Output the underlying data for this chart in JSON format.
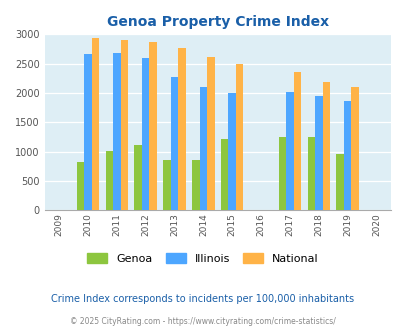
{
  "title": "Genoa Property Crime Index",
  "all_years": [
    2009,
    2010,
    2011,
    2012,
    2013,
    2014,
    2015,
    2016,
    2017,
    2018,
    2019,
    2020
  ],
  "bar_years": [
    2010,
    2011,
    2012,
    2013,
    2014,
    2015,
    2017,
    2018,
    2019
  ],
  "genoa": [
    820,
    1010,
    1120,
    860,
    850,
    1210,
    1250,
    1250,
    960
  ],
  "illinois": [
    2670,
    2680,
    2590,
    2280,
    2100,
    2000,
    2020,
    1950,
    1860
  ],
  "national": [
    2930,
    2910,
    2870,
    2760,
    2620,
    2500,
    2360,
    2190,
    2100
  ],
  "colors": {
    "genoa": "#8dc63f",
    "illinois": "#4da6ff",
    "national": "#ffb347"
  },
  "ylim": [
    0,
    3000
  ],
  "yticks": [
    0,
    500,
    1000,
    1500,
    2000,
    2500,
    3000
  ],
  "background_color": "#deeef5",
  "title_color": "#1a5fa8",
  "footnote1": "Crime Index corresponds to incidents per 100,000 inhabitants",
  "footnote2": "© 2025 CityRating.com - https://www.cityrating.com/crime-statistics/",
  "legend_labels": [
    "Genoa",
    "Illinois",
    "National"
  ],
  "bar_width": 0.26,
  "figsize": [
    4.06,
    3.3
  ],
  "dpi": 100
}
